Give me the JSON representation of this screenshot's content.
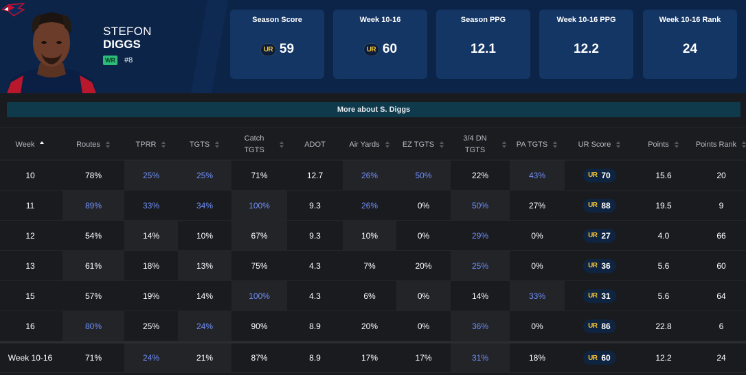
{
  "player": {
    "first_name": "STEFON",
    "last_name": "DIGGS",
    "position": "WR",
    "number": "#8"
  },
  "stat_cards": [
    {
      "label": "Season Score",
      "value": "59",
      "ur_logo": true
    },
    {
      "label": "Week 10-16",
      "value": "60",
      "ur_logo": true
    },
    {
      "label": "Season PPG",
      "value": "12.1",
      "ur_logo": false
    },
    {
      "label": "Week 10-16 PPG",
      "value": "12.2",
      "ur_logo": false
    },
    {
      "label": "Week 10-16 Rank",
      "value": "24",
      "ur_logo": false
    }
  ],
  "ur_logo_text": "UR",
  "more_link": "More about S. Diggs",
  "table": {
    "headers": [
      "Week",
      "Routes",
      "TPRR",
      "TGTS",
      "Catch TGTS",
      "ADOT",
      "Air Yards",
      "EZ TGTS",
      "3/4 DN TGTS",
      "PA TGTS",
      "UR Score",
      "Points",
      "Points Rank"
    ],
    "sorted_column": "Week",
    "rows": [
      {
        "cells": [
          "10",
          "78%",
          "25%",
          "25%",
          "71%",
          "12.7",
          "26%",
          "50%",
          "22%",
          "43%",
          "70",
          "15.6",
          "20"
        ],
        "highlight": [
          2,
          3,
          6,
          7,
          9
        ]
      },
      {
        "cells": [
          "11",
          "89%",
          "33%",
          "34%",
          "100%",
          "9.3",
          "26%",
          "0%",
          "50%",
          "27%",
          "88",
          "19.5",
          "9"
        ],
        "highlight": [
          1,
          2,
          3,
          4,
          6,
          8
        ]
      },
      {
        "cells": [
          "12",
          "54%",
          "14%",
          "10%",
          "67%",
          "9.3",
          "10%",
          "0%",
          "29%",
          "0%",
          "27",
          "4.0",
          "66"
        ],
        "highlight": [
          8
        ]
      },
      {
        "cells": [
          "13",
          "61%",
          "18%",
          "13%",
          "75%",
          "4.3",
          "7%",
          "20%",
          "25%",
          "0%",
          "36",
          "5.6",
          "60"
        ],
        "highlight": [
          8
        ]
      },
      {
        "cells": [
          "15",
          "57%",
          "19%",
          "14%",
          "100%",
          "4.3",
          "6%",
          "0%",
          "14%",
          "33%",
          "31",
          "5.6",
          "64"
        ],
        "highlight": [
          4,
          9
        ]
      },
      {
        "cells": [
          "16",
          "80%",
          "25%",
          "24%",
          "90%",
          "8.9",
          "20%",
          "0%",
          "36%",
          "0%",
          "86",
          "22.8",
          "6"
        ],
        "highlight": [
          1,
          3,
          8
        ]
      }
    ],
    "total": {
      "cells": [
        "Week 10-16",
        "71%",
        "24%",
        "21%",
        "87%",
        "8.9",
        "17%",
        "17%",
        "31%",
        "18%",
        "60",
        "12.2",
        "24"
      ],
      "highlight": [
        2,
        8
      ]
    }
  },
  "colors": {
    "header_bg": "#0c2448",
    "card_bg": "#143665",
    "highlight_text": "#6f8ff8",
    "ur_gold": "#f4c234",
    "position_badge": "#2cbd7a"
  }
}
